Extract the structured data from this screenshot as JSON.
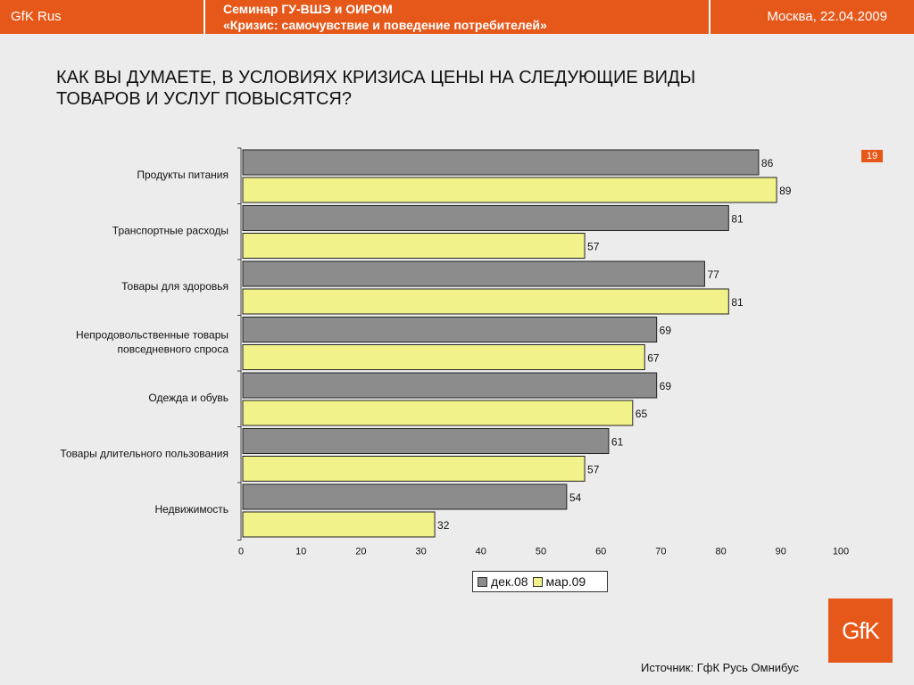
{
  "header": {
    "brand": "GfK Rus",
    "seminar_line1": "Семинар ГУ-ВШЭ и ОИРОМ",
    "seminar_line2": "«Кризис: самочувствие и поведение потребителей»",
    "date": "Москва, 22.04.2009"
  },
  "question": "КАК ВЫ ДУМАЕТЕ, В УСЛОВИЯХ КРИЗИСА ЦЕНЫ НА СЛЕДУЮЩИЕ ВИДЫ ТОВАРОВ И УСЛУГ ПОВЫСЯТСЯ?",
  "page_number": "19",
  "source": "Источник: ГфК Русь Омнибус",
  "logo_text": "GfK",
  "colors": {
    "accent": "#e6581a",
    "series_dec": "#8c8c8c",
    "series_mar": "#f2f28a"
  },
  "chart_data": {
    "type": "bar",
    "orientation": "horizontal",
    "categories": [
      "Продукты питания",
      "Транспортные расходы",
      "Товары для здоровья",
      "Непродовольственные товары повседневного спроса",
      "Одежда и обувь",
      "Товары длительного пользования",
      "Недвижимость"
    ],
    "category_lines": [
      [
        "Продукты питания"
      ],
      [
        "Транспортные расходы"
      ],
      [
        "Товары для здоровья"
      ],
      [
        "Непродовольственные товары",
        "повседневного спроса"
      ],
      [
        "Одежда и обувь"
      ],
      [
        "Товары длительного пользования"
      ],
      [
        "Недвижимость"
      ]
    ],
    "series": [
      {
        "name": "дек.08",
        "values": [
          86,
          81,
          77,
          69,
          69,
          61,
          54
        ]
      },
      {
        "name": "мар.09",
        "values": [
          89,
          57,
          81,
          67,
          65,
          57,
          32
        ]
      }
    ],
    "xlim": [
      0,
      100
    ],
    "xticks": [
      0,
      10,
      20,
      30,
      40,
      50,
      60,
      70,
      80,
      90,
      100
    ],
    "grid": false,
    "legend_position": "bottom"
  }
}
